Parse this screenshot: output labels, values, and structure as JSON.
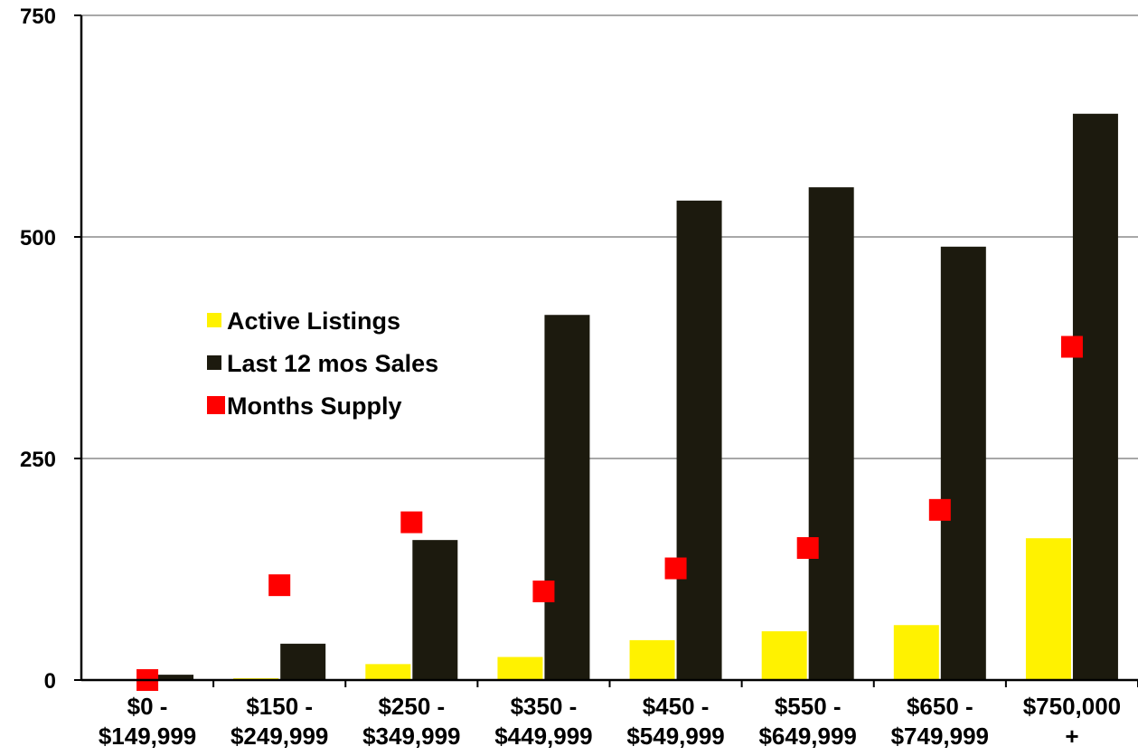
{
  "chart_data": {
    "type": "bar",
    "title": "",
    "xlabel": "",
    "ylabel": "",
    "ylim": [
      0,
      750
    ],
    "yticks": [
      0,
      250,
      500,
      750
    ],
    "grid": true,
    "legend_position": "left-center",
    "categories": [
      [
        "$0 -",
        "$149,999"
      ],
      [
        "$150 -",
        "$249,999"
      ],
      [
        "$250 -",
        "$349,999"
      ],
      [
        "$350 -",
        "$449,999"
      ],
      [
        "$450 -",
        "$549,999"
      ],
      [
        "$550 -",
        "$649,999"
      ],
      [
        "$650 -",
        "$749,999"
      ],
      [
        "$750,000",
        "+"
      ]
    ],
    "series": [
      {
        "name": "Active Listings",
        "kind": "bar",
        "color": "#FFF200",
        "values": [
          0,
          2,
          18,
          26,
          45,
          55,
          62,
          160
        ]
      },
      {
        "name": "Last 12 mos Sales",
        "kind": "bar",
        "color": "#1C1A0E",
        "values": [
          6,
          41,
          158,
          412,
          541,
          556,
          489,
          639
        ]
      },
      {
        "name": "Months Supply",
        "kind": "marker",
        "color": "#FF0000",
        "values": [
          0,
          107,
          178,
          100,
          126,
          149,
          192,
          376
        ]
      }
    ]
  }
}
